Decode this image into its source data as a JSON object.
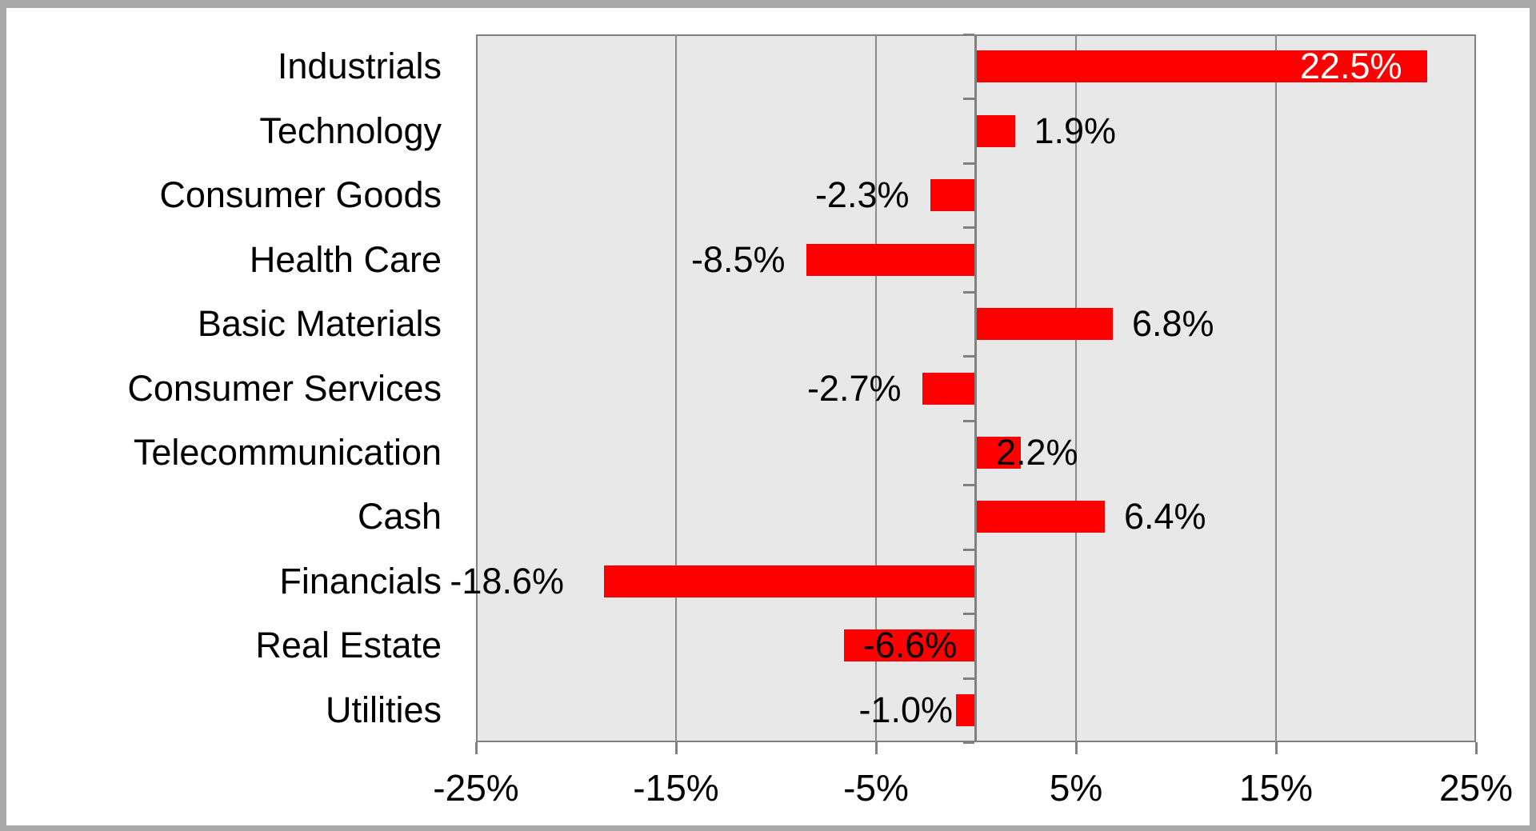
{
  "chart_data": {
    "type": "bar",
    "orientation": "horizontal",
    "title": "",
    "xlabel": "",
    "ylabel": "",
    "grid": true,
    "legend": false,
    "categories": [
      "Industrials",
      "Technology",
      "Consumer Goods",
      "Health Care",
      "Basic Materials",
      "Consumer Services",
      "Telecommunication",
      "Cash",
      "Financials",
      "Real Estate",
      "Utilities"
    ],
    "values": [
      22.5,
      1.9,
      -2.3,
      -8.5,
      6.8,
      -2.7,
      2.2,
      6.4,
      -18.6,
      -6.6,
      -1.0
    ],
    "value_labels": [
      "22.5%",
      "1.9%",
      "-2.3%",
      "-8.5%",
      "6.8%",
      "-2.7%",
      "2.2%",
      "6.4%",
      "-18.6%",
      "-6.6%",
      "-1.0%"
    ],
    "value_label_placements": [
      "inside-end",
      "outside",
      "outside",
      "outside",
      "outside",
      "outside",
      "straddle-end",
      "outside",
      "outside-far",
      "inside-center",
      "outside-near"
    ],
    "value_label_colors": [
      "#ffffff",
      "#000000",
      "#000000",
      "#000000",
      "#000000",
      "#000000",
      "#000000",
      "#000000",
      "#000000",
      "#000000",
      "#000000"
    ],
    "x_axis": {
      "min": -25,
      "max": 25,
      "tick_values": [
        -25,
        -15,
        -5,
        5,
        15,
        25
      ],
      "tick_labels": [
        "-25%",
        "-15%",
        "-5%",
        "5%",
        "15%",
        "25%"
      ],
      "gridline_values": [
        -15,
        -5,
        5,
        15
      ]
    },
    "colors": {
      "bar": "#ff0000",
      "plot_background": "#e8e8e8",
      "gridline": "#8a8a8a",
      "axis": "#808080",
      "page_border": "#a8a8a8",
      "text": "#000000",
      "label_inside_bar": "#ffffff"
    }
  }
}
